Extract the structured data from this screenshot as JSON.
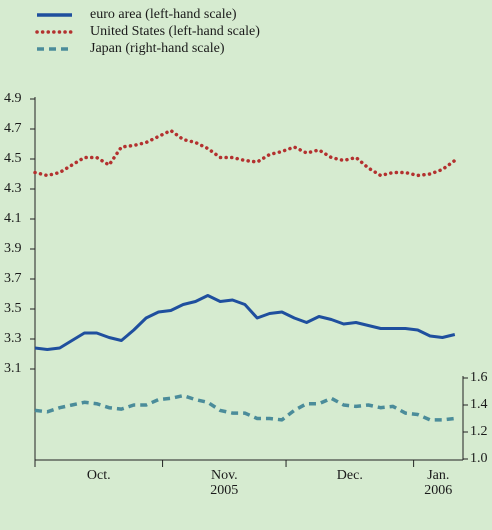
{
  "chart_data": {
    "type": "line",
    "x": [
      0,
      3,
      6,
      9,
      12,
      15,
      18,
      21,
      24,
      27,
      30,
      33,
      36,
      39,
      42,
      45,
      48,
      51,
      54,
      57,
      60,
      63,
      66,
      69,
      72,
      75,
      78,
      81,
      84,
      87,
      90,
      93,
      96,
      99,
      102
    ],
    "xlim": [
      0,
      104
    ],
    "xticks": [
      0,
      31,
      61,
      92
    ],
    "x_labels": [
      {
        "text": "Oct."
      },
      {
        "text": "Nov.",
        "year": "2005"
      },
      {
        "text": "Dec."
      },
      {
        "text": "Jan.",
        "year": "2006"
      }
    ],
    "ylim": [
      2.5,
      4.9
    ],
    "yticks": [
      3.1,
      3.3,
      3.5,
      3.7,
      3.9,
      4.1,
      4.3,
      4.5,
      4.7,
      4.9
    ],
    "y2lim": [
      1,
      3.6667
    ],
    "y2ticks": [
      {
        "value": 1,
        "label": "1.0"
      },
      1.2,
      1.4,
      1.6
    ],
    "series": [
      {
        "name": "euro area (left-hand scale)",
        "color": "#1f4f9e",
        "style": "solid",
        "axis": "y",
        "values": [
          3.24,
          3.23,
          3.24,
          3.29,
          3.34,
          3.34,
          3.31,
          3.29,
          3.36,
          3.44,
          3.48,
          3.49,
          3.53,
          3.55,
          3.59,
          3.55,
          3.56,
          3.53,
          3.44,
          3.47,
          3.48,
          3.44,
          3.41,
          3.45,
          3.43,
          3.4,
          3.41,
          3.39,
          3.37,
          3.37,
          3.37,
          3.36,
          3.32,
          3.31,
          3.33
        ]
      },
      {
        "name": "United States (left-hand scale)",
        "color": "#b3312f",
        "style": "dotted",
        "axis": "y",
        "values": [
          4.41,
          4.39,
          4.41,
          4.46,
          4.51,
          4.51,
          4.46,
          4.58,
          4.59,
          4.61,
          4.65,
          4.69,
          4.63,
          4.61,
          4.57,
          4.51,
          4.51,
          4.49,
          4.48,
          4.53,
          4.55,
          4.58,
          4.54,
          4.56,
          4.51,
          4.49,
          4.51,
          4.44,
          4.39,
          4.41,
          4.41,
          4.39,
          4.4,
          4.43,
          4.49
        ]
      },
      {
        "name": "Japan (right-hand scale)",
        "color": "#4b8c9a",
        "style": "dashed",
        "axis": "y2",
        "values": [
          1.36,
          1.35,
          1.38,
          1.4,
          1.42,
          1.41,
          1.38,
          1.37,
          1.4,
          1.4,
          1.44,
          1.45,
          1.47,
          1.44,
          1.42,
          1.36,
          1.34,
          1.34,
          1.3,
          1.3,
          1.29,
          1.36,
          1.41,
          1.41,
          1.45,
          1.4,
          1.39,
          1.4,
          1.38,
          1.39,
          1.34,
          1.33,
          1.29,
          1.29,
          1.3
        ]
      }
    ]
  }
}
